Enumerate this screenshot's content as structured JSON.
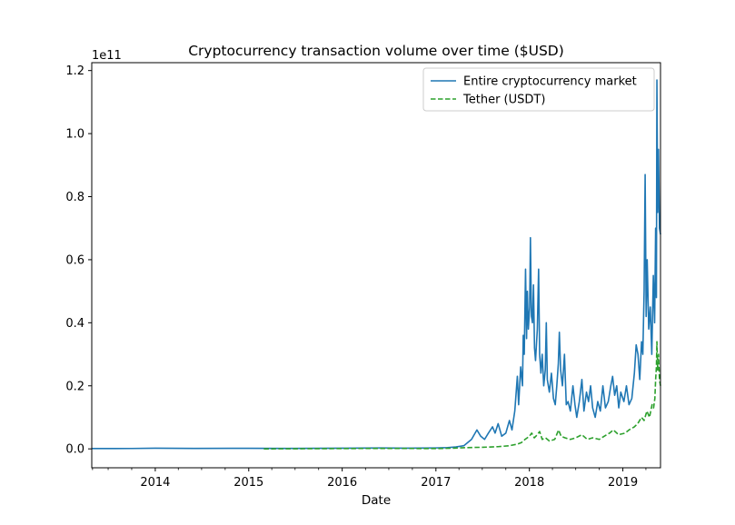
{
  "chart_data": {
    "type": "line",
    "title": "Cryptocurrency transaction volume over time ($USD)",
    "xlabel": "Date",
    "ylabel": "",
    "y_offset_label": "1e11",
    "x_unit": "date",
    "xlim": [
      "2013-04-28",
      "2019-05-28"
    ],
    "ylim": [
      -0.06,
      1.225
    ],
    "y_unit": "1e11 USD",
    "x_ticks": [
      {
        "date": "2014-01-01",
        "label": "2014"
      },
      {
        "date": "2015-01-01",
        "label": "2015"
      },
      {
        "date": "2016-01-01",
        "label": "2016"
      },
      {
        "date": "2017-01-01",
        "label": "2017"
      },
      {
        "date": "2018-01-01",
        "label": "2018"
      },
      {
        "date": "2019-01-01",
        "label": "2019"
      }
    ],
    "x_minor_ticks": [
      "2013-05-01",
      "2013-07-01",
      "2013-10-01",
      "2014-04-01",
      "2014-07-01",
      "2014-10-01",
      "2015-04-01",
      "2015-07-01",
      "2015-10-01",
      "2016-04-01",
      "2016-07-01",
      "2016-10-01",
      "2017-04-01",
      "2017-07-01",
      "2017-10-01",
      "2018-04-01",
      "2018-07-01",
      "2018-10-01",
      "2019-04-01"
    ],
    "y_ticks": [
      {
        "value": 0.0,
        "label": "0.0"
      },
      {
        "value": 0.2,
        "label": "0.2"
      },
      {
        "value": 0.4,
        "label": "0.4"
      },
      {
        "value": 0.6,
        "label": "0.6"
      },
      {
        "value": 0.8,
        "label": "0.8"
      },
      {
        "value": 1.0,
        "label": "1.0"
      },
      {
        "value": 1.2,
        "label": "1.2"
      }
    ],
    "grid": false,
    "legend_position": "top-right",
    "series": [
      {
        "name": "Entire cryptocurrency market",
        "color": "#1f77b4",
        "style": "solid",
        "points": [
          [
            "2013-04-28",
            0.001
          ],
          [
            "2013-10-01",
            0.0012
          ],
          [
            "2014-01-01",
            0.002
          ],
          [
            "2014-06-01",
            0.0015
          ],
          [
            "2015-01-01",
            0.0018
          ],
          [
            "2015-06-01",
            0.0014
          ],
          [
            "2016-01-01",
            0.002
          ],
          [
            "2016-06-01",
            0.003
          ],
          [
            "2016-09-01",
            0.002
          ],
          [
            "2017-01-01",
            0.003
          ],
          [
            "2017-02-15",
            0.004
          ],
          [
            "2017-03-20",
            0.006
          ],
          [
            "2017-04-20",
            0.01
          ],
          [
            "2017-05-20",
            0.03
          ],
          [
            "2017-06-10",
            0.06
          ],
          [
            "2017-06-25",
            0.04
          ],
          [
            "2017-07-10",
            0.03
          ],
          [
            "2017-07-25",
            0.05
          ],
          [
            "2017-08-10",
            0.07
          ],
          [
            "2017-08-20",
            0.05
          ],
          [
            "2017-09-01",
            0.08
          ],
          [
            "2017-09-15",
            0.04
          ],
          [
            "2017-10-01",
            0.05
          ],
          [
            "2017-10-15",
            0.09
          ],
          [
            "2017-10-25",
            0.06
          ],
          [
            "2017-11-05",
            0.12
          ],
          [
            "2017-11-15",
            0.23
          ],
          [
            "2017-11-20",
            0.14
          ],
          [
            "2017-11-28",
            0.26
          ],
          [
            "2017-12-05",
            0.2
          ],
          [
            "2017-12-08",
            0.36
          ],
          [
            "2017-12-12",
            0.3
          ],
          [
            "2017-12-17",
            0.57
          ],
          [
            "2017-12-21",
            0.35
          ],
          [
            "2017-12-24",
            0.5
          ],
          [
            "2017-12-28",
            0.38
          ],
          [
            "2018-01-02",
            0.45
          ],
          [
            "2018-01-05",
            0.67
          ],
          [
            "2018-01-09",
            0.42
          ],
          [
            "2018-01-13",
            0.4
          ],
          [
            "2018-01-17",
            0.52
          ],
          [
            "2018-01-21",
            0.32
          ],
          [
            "2018-01-25",
            0.28
          ],
          [
            "2018-02-01",
            0.38
          ],
          [
            "2018-02-06",
            0.57
          ],
          [
            "2018-02-10",
            0.3
          ],
          [
            "2018-02-15",
            0.24
          ],
          [
            "2018-02-20",
            0.3
          ],
          [
            "2018-02-26",
            0.2
          ],
          [
            "2018-03-04",
            0.25
          ],
          [
            "2018-03-08",
            0.4
          ],
          [
            "2018-03-12",
            0.22
          ],
          [
            "2018-03-20",
            0.18
          ],
          [
            "2018-03-28",
            0.24
          ],
          [
            "2018-04-05",
            0.16
          ],
          [
            "2018-04-12",
            0.14
          ],
          [
            "2018-04-18",
            0.2
          ],
          [
            "2018-04-24",
            0.27
          ],
          [
            "2018-04-28",
            0.37
          ],
          [
            "2018-05-03",
            0.25
          ],
          [
            "2018-05-10",
            0.2
          ],
          [
            "2018-05-18",
            0.3
          ],
          [
            "2018-05-25",
            0.14
          ],
          [
            "2018-06-01",
            0.15
          ],
          [
            "2018-06-10",
            0.12
          ],
          [
            "2018-06-20",
            0.2
          ],
          [
            "2018-06-28",
            0.14
          ],
          [
            "2018-07-05",
            0.1
          ],
          [
            "2018-07-15",
            0.15
          ],
          [
            "2018-07-25",
            0.22
          ],
          [
            "2018-08-02",
            0.12
          ],
          [
            "2018-08-12",
            0.18
          ],
          [
            "2018-08-20",
            0.15
          ],
          [
            "2018-08-28",
            0.2
          ],
          [
            "2018-09-05",
            0.13
          ],
          [
            "2018-09-15",
            0.1
          ],
          [
            "2018-09-25",
            0.15
          ],
          [
            "2018-10-05",
            0.12
          ],
          [
            "2018-10-15",
            0.2
          ],
          [
            "2018-10-25",
            0.13
          ],
          [
            "2018-11-05",
            0.15
          ],
          [
            "2018-11-15",
            0.2
          ],
          [
            "2018-11-22",
            0.23
          ],
          [
            "2018-11-30",
            0.17
          ],
          [
            "2018-12-08",
            0.2
          ],
          [
            "2018-12-16",
            0.13
          ],
          [
            "2018-12-24",
            0.18
          ],
          [
            "2019-01-05",
            0.15
          ],
          [
            "2019-01-15",
            0.2
          ],
          [
            "2019-01-25",
            0.14
          ],
          [
            "2019-02-05",
            0.16
          ],
          [
            "2019-02-15",
            0.24
          ],
          [
            "2019-02-22",
            0.33
          ],
          [
            "2019-03-01",
            0.3
          ],
          [
            "2019-03-08",
            0.22
          ],
          [
            "2019-03-15",
            0.34
          ],
          [
            "2019-03-20",
            0.3
          ],
          [
            "2019-03-25",
            0.5
          ],
          [
            "2019-03-29",
            0.87
          ],
          [
            "2019-04-02",
            0.42
          ],
          [
            "2019-04-06",
            0.6
          ],
          [
            "2019-04-12",
            0.38
          ],
          [
            "2019-04-18",
            0.45
          ],
          [
            "2019-04-24",
            0.3
          ],
          [
            "2019-04-30",
            0.55
          ],
          [
            "2019-05-05",
            0.4
          ],
          [
            "2019-05-09",
            0.7
          ],
          [
            "2019-05-12",
            0.48
          ],
          [
            "2019-05-14",
            1.17
          ],
          [
            "2019-05-17",
            0.75
          ],
          [
            "2019-05-20",
            0.95
          ],
          [
            "2019-05-24",
            0.7
          ],
          [
            "2019-05-28",
            0.68
          ]
        ]
      },
      {
        "name": "Tether (USDT)",
        "color": "#2ca02c",
        "style": "dashed",
        "points": [
          [
            "2015-03-01",
            0.0
          ],
          [
            "2016-01-01",
            0.001
          ],
          [
            "2016-06-01",
            0.0015
          ],
          [
            "2017-01-01",
            0.001
          ],
          [
            "2017-03-01",
            0.002
          ],
          [
            "2017-05-01",
            0.004
          ],
          [
            "2017-07-01",
            0.005
          ],
          [
            "2017-09-01",
            0.007
          ],
          [
            "2017-10-15",
            0.01
          ],
          [
            "2017-11-15",
            0.015
          ],
          [
            "2017-12-01",
            0.02
          ],
          [
            "2017-12-15",
            0.03
          ],
          [
            "2018-01-01",
            0.04
          ],
          [
            "2018-01-10",
            0.05
          ],
          [
            "2018-01-20",
            0.035
          ],
          [
            "2018-02-01",
            0.045
          ],
          [
            "2018-02-10",
            0.055
          ],
          [
            "2018-02-20",
            0.03
          ],
          [
            "2018-03-05",
            0.035
          ],
          [
            "2018-03-20",
            0.025
          ],
          [
            "2018-04-10",
            0.03
          ],
          [
            "2018-04-25",
            0.06
          ],
          [
            "2018-05-05",
            0.04
          ],
          [
            "2018-05-20",
            0.035
          ],
          [
            "2018-06-10",
            0.03
          ],
          [
            "2018-07-01",
            0.035
          ],
          [
            "2018-07-25",
            0.045
          ],
          [
            "2018-08-15",
            0.03
          ],
          [
            "2018-09-05",
            0.035
          ],
          [
            "2018-10-01",
            0.03
          ],
          [
            "2018-10-20",
            0.04
          ],
          [
            "2018-11-10",
            0.05
          ],
          [
            "2018-11-25",
            0.06
          ],
          [
            "2018-12-15",
            0.045
          ],
          [
            "2019-01-10",
            0.05
          ],
          [
            "2019-01-25",
            0.06
          ],
          [
            "2019-02-15",
            0.07
          ],
          [
            "2019-02-28",
            0.08
          ],
          [
            "2019-03-15",
            0.1
          ],
          [
            "2019-03-25",
            0.09
          ],
          [
            "2019-04-05",
            0.12
          ],
          [
            "2019-04-15",
            0.1
          ],
          [
            "2019-04-25",
            0.14
          ],
          [
            "2019-05-01",
            0.13
          ],
          [
            "2019-05-06",
            0.16
          ],
          [
            "2019-05-09",
            0.22
          ],
          [
            "2019-05-12",
            0.26
          ],
          [
            "2019-05-14",
            0.34
          ],
          [
            "2019-05-17",
            0.25
          ],
          [
            "2019-05-20",
            0.3
          ],
          [
            "2019-05-24",
            0.22
          ],
          [
            "2019-05-28",
            0.2
          ]
        ]
      }
    ]
  }
}
